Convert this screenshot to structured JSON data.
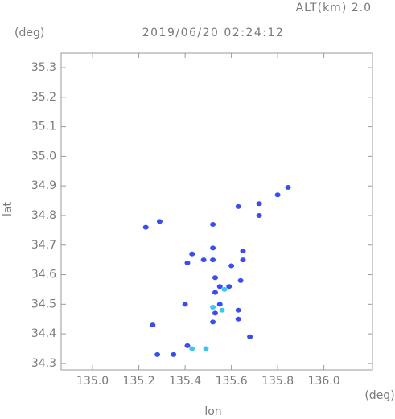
{
  "chart_data": {
    "type": "scatter",
    "title": "2019/06/20 02:24:12",
    "annotation": "ALT(km) 2.0",
    "x_label": "lon",
    "y_label": "lat",
    "x_unit": "(deg)",
    "y_unit": "(deg)",
    "xlim": [
      134.864,
      136.21
    ],
    "ylim": [
      34.278,
      35.349
    ],
    "xticks": [
      {
        "value": 135.0,
        "label": "135.0"
      },
      135.2,
      135.4,
      135.6,
      135.8,
      {
        "value": 136.0,
        "label": "136.0"
      }
    ],
    "yticks": [
      34.3,
      34.4,
      34.5,
      34.6,
      34.7,
      34.8,
      34.9,
      {
        "value": 35.0,
        "label": "35.0"
      },
      35.1,
      35.2,
      35.3
    ],
    "series": [
      {
        "color": "#3a4ef0",
        "x": [
          135.23,
          135.29,
          135.8,
          135.845,
          135.72,
          135.72,
          135.63,
          135.52,
          135.52,
          135.52,
          135.65,
          135.65,
          135.6,
          135.43,
          135.41,
          135.48,
          135.64,
          135.53,
          135.55,
          135.59,
          135.53,
          135.55,
          135.53,
          135.52,
          135.4,
          135.63,
          135.63,
          135.26,
          135.28,
          135.35,
          135.41,
          135.68
        ],
        "y": [
          34.76,
          34.78,
          34.87,
          34.895,
          34.8,
          34.84,
          34.83,
          34.77,
          34.69,
          34.65,
          34.68,
          34.65,
          34.63,
          34.67,
          34.64,
          34.65,
          34.58,
          34.59,
          34.56,
          34.56,
          34.54,
          34.5,
          34.47,
          34.44,
          34.5,
          34.48,
          34.45,
          34.43,
          34.33,
          34.33,
          34.36,
          34.39
        ]
      },
      {
        "color": "#3fc6ee",
        "x": [
          135.57,
          135.52,
          135.43,
          135.49,
          135.56
        ],
        "y": [
          34.55,
          34.49,
          34.35,
          34.35,
          34.48
        ]
      }
    ]
  }
}
